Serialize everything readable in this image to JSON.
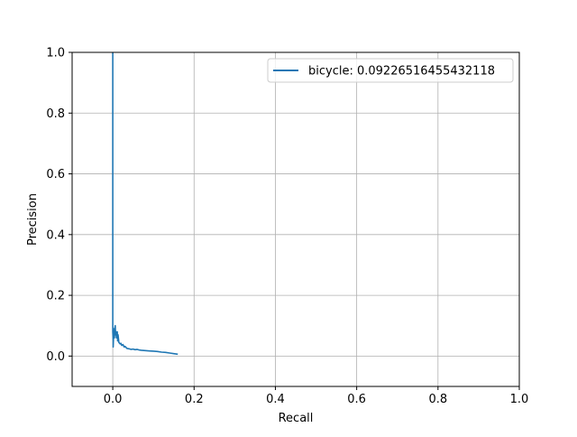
{
  "chart_data": {
    "type": "line",
    "title": "",
    "xlabel": "Recall",
    "ylabel": "Precision",
    "xlim": [
      -0.1,
      1.0
    ],
    "ylim": [
      -0.1,
      1.0
    ],
    "x_ticks": [
      "0.0",
      "0.2",
      "0.4",
      "0.6",
      "0.8",
      "1.0"
    ],
    "y_ticks": [
      "0.0",
      "0.2",
      "0.4",
      "0.6",
      "0.8",
      "1.0"
    ],
    "x_tick_values": [
      0.0,
      0.2,
      0.4,
      0.6,
      0.8,
      1.0
    ],
    "y_tick_values": [
      0.0,
      0.2,
      0.4,
      0.6,
      0.8,
      1.0
    ],
    "grid": true,
    "legend": {
      "placement": "upper-right",
      "entries": [
        "bicycle: 0.09226516455432118"
      ]
    },
    "series": [
      {
        "name": "bicycle: 0.09226516455432118",
        "color": "#1f77b4",
        "x": [
          0.0,
          0.0,
          0.0,
          0.0,
          0.001,
          0.001,
          0.002,
          0.002,
          0.003,
          0.004,
          0.005,
          0.006,
          0.007,
          0.008,
          0.009,
          0.01,
          0.011,
          0.012,
          0.013,
          0.015,
          0.018,
          0.02,
          0.022,
          0.025,
          0.028,
          0.03,
          0.035,
          0.04,
          0.045,
          0.05,
          0.055,
          0.06,
          0.065,
          0.07,
          0.08,
          0.09,
          0.1,
          0.11,
          0.12,
          0.13,
          0.14,
          0.15,
          0.16
        ],
        "y": [
          1.0,
          0.6,
          0.2,
          0.08,
          0.05,
          0.03,
          0.07,
          0.09,
          0.08,
          0.06,
          0.09,
          0.1,
          0.07,
          0.08,
          0.06,
          0.07,
          0.08,
          0.05,
          0.07,
          0.045,
          0.04,
          0.042,
          0.035,
          0.038,
          0.03,
          0.032,
          0.025,
          0.024,
          0.022,
          0.023,
          0.021,
          0.022,
          0.02,
          0.019,
          0.018,
          0.017,
          0.016,
          0.015,
          0.013,
          0.012,
          0.01,
          0.008,
          0.006
        ]
      }
    ]
  }
}
